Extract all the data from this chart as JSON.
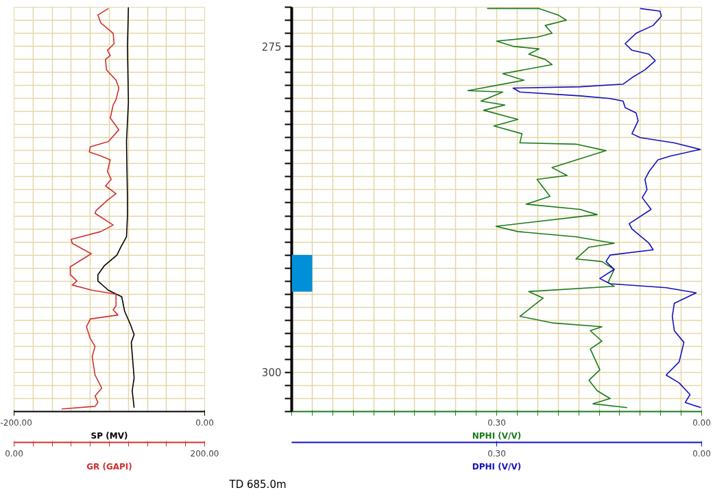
{
  "chart_data": [
    {
      "type": "line",
      "xlim": [
        0,
        200
      ],
      "xticks": [
        {
          "value": 0,
          "label": "0.00"
        },
        {
          "value": 20,
          "label": null
        },
        {
          "value": 40,
          "label": null
        },
        {
          "value": 60,
          "label": null
        },
        {
          "value": 80,
          "label": null
        },
        {
          "value": 100,
          "label": null
        },
        {
          "value": 120,
          "label": null
        },
        {
          "value": 140,
          "label": null
        },
        {
          "value": 160,
          "label": null
        },
        {
          "value": 180,
          "label": null
        },
        {
          "value": 200,
          "label": "200.00"
        }
      ],
      "x2lim": [
        -200,
        0
      ],
      "x2ticks": [
        {
          "value": -200,
          "label": "-200.00"
        },
        {
          "value": 0,
          "label": "0.00"
        }
      ],
      "ylim": [
        303,
        272
      ],
      "yticks": [
        {
          "value": 272,
          "label": null
        },
        {
          "value": 273,
          "label": null
        },
        {
          "value": 274,
          "label": null
        },
        275,
        {
          "value": 276,
          "label": null
        },
        {
          "value": 277,
          "label": null
        },
        {
          "value": 278,
          "label": null
        },
        {
          "value": 279,
          "label": null
        },
        {
          "value": 280,
          "label": null
        },
        {
          "value": 281,
          "label": null
        },
        {
          "value": 282,
          "label": null
        },
        {
          "value": 283,
          "label": null
        },
        {
          "value": 284,
          "label": null
        },
        {
          "value": 285,
          "label": null
        },
        {
          "value": 286,
          "label": null
        },
        {
          "value": 287,
          "label": null
        },
        {
          "value": 288,
          "label": null
        },
        {
          "value": 289,
          "label": null
        },
        {
          "value": 290,
          "label": null
        },
        {
          "value": 291,
          "label": null
        },
        {
          "value": 292,
          "label": null
        },
        {
          "value": 293,
          "label": null
        },
        {
          "value": 294,
          "label": null
        },
        {
          "value": 295,
          "label": null
        },
        {
          "value": 296,
          "label": null
        },
        {
          "value": 297,
          "label": null
        },
        {
          "value": 298,
          "label": null
        },
        {
          "value": 299,
          "label": null
        },
        300,
        {
          "value": 301,
          "label": null
        },
        {
          "value": 302,
          "label": null
        },
        {
          "value": 303,
          "label": null
        }
      ],
      "tick_labels": "x",
      "grid": true,
      "series": [
        {
          "name": "SP (MV)",
          "color": "#000000",
          "axis": "x2",
          "x": [
            -80,
            -81,
            -80,
            -82,
            -81,
            -81,
            -82,
            -88,
            -92,
            -105,
            -112,
            -112,
            -101,
            -87,
            -84,
            -78,
            -74,
            -77,
            -74,
            -76,
            -74
          ],
          "values": [
            272.0,
            275.0,
            279.3,
            282.3,
            286.6,
            288.0,
            289.6,
            290.4,
            291.0,
            291.8,
            292.5,
            293.0,
            293.7,
            294.2,
            295.3,
            296.3,
            297.1,
            297.7,
            300.4,
            301.4,
            302.7
          ]
        },
        {
          "name": "GR (GAPI)",
          "color": "#d03030",
          "x": [
            99,
            88,
            91,
            104,
            105,
            98,
            101,
            96,
            97,
            107,
            110,
            107,
            104,
            101,
            110,
            99,
            80,
            79,
            91,
            101,
            98,
            102,
            96,
            107,
            98,
            86,
            85,
            104,
            91,
            60,
            61,
            81,
            59,
            59,
            66,
            61,
            82,
            107,
            107,
            104,
            109,
            80,
            76,
            80,
            85,
            82,
            85,
            92,
            85,
            88,
            85,
            50
          ],
          "values": [
            272.1,
            272.6,
            273.2,
            274.0,
            274.8,
            275.3,
            275.7,
            276.0,
            276.8,
            277.6,
            278.2,
            279.1,
            279.5,
            280.5,
            281.4,
            282.3,
            282.7,
            283.1,
            283.4,
            283.7,
            284.6,
            285.2,
            285.7,
            286.3,
            286.8,
            287.6,
            287.8,
            288.7,
            289.2,
            289.8,
            290.1,
            290.9,
            291.9,
            292.5,
            293.0,
            293.3,
            293.7,
            294.0,
            294.9,
            295.2,
            295.6,
            295.9,
            296.5,
            297.4,
            298.0,
            298.8,
            300.2,
            301.2,
            301.8,
            302.3,
            302.6,
            302.8
          ]
        }
      ]
    },
    {
      "type": "line",
      "xlim": [
        0.6,
        0
      ],
      "xticks": [
        {
          "value": 0.6,
          "label": null
        },
        {
          "value": 0.57,
          "label": null
        },
        {
          "value": 0.54,
          "label": null
        },
        {
          "value": 0.51,
          "label": null
        },
        {
          "value": 0.48,
          "label": null
        },
        {
          "value": 0.45,
          "label": null
        },
        {
          "value": 0.42,
          "label": null
        },
        {
          "value": 0.39,
          "label": null
        },
        {
          "value": 0.36,
          "label": null
        },
        {
          "value": 0.33,
          "label": null
        },
        {
          "value": 0.3,
          "label": "0.30"
        },
        {
          "value": 0.27,
          "label": null
        },
        {
          "value": 0.24,
          "label": null
        },
        {
          "value": 0.21,
          "label": null
        },
        {
          "value": 0.18,
          "label": null
        },
        {
          "value": 0.15,
          "label": null
        },
        {
          "value": 0.12,
          "label": null
        },
        {
          "value": 0.09,
          "label": null
        },
        {
          "value": 0.06,
          "label": null
        },
        {
          "value": 0.03,
          "label": null
        },
        {
          "value": 0,
          "label": "0.00"
        }
      ],
      "x2lim": [
        0.6,
        0
      ],
      "x2ticks": [
        {
          "value": 0.3,
          "label": "0.30"
        },
        {
          "value": 0,
          "label": "0.00"
        }
      ],
      "ylim": [
        303,
        272
      ],
      "yticks": [
        {
          "value": 272,
          "label": null
        },
        {
          "value": 273,
          "label": null
        },
        {
          "value": 274,
          "label": null
        },
        275,
        {
          "value": 276,
          "label": null
        },
        {
          "value": 277,
          "label": null
        },
        {
          "value": 278,
          "label": null
        },
        {
          "value": 279,
          "label": null
        },
        {
          "value": 280,
          "label": null
        },
        {
          "value": 281,
          "label": null
        },
        {
          "value": 282,
          "label": null
        },
        {
          "value": 283,
          "label": null
        },
        {
          "value": 284,
          "label": null
        },
        {
          "value": 285,
          "label": null
        },
        {
          "value": 286,
          "label": null
        },
        {
          "value": 287,
          "label": null
        },
        {
          "value": 288,
          "label": null
        },
        {
          "value": 289,
          "label": null
        },
        {
          "value": 290,
          "label": null
        },
        {
          "value": 291,
          "label": null
        },
        {
          "value": 292,
          "label": null
        },
        {
          "value": 293,
          "label": null
        },
        {
          "value": 294,
          "label": null
        },
        {
          "value": 295,
          "label": null
        },
        {
          "value": 296,
          "label": null
        },
        {
          "value": 297,
          "label": null
        },
        {
          "value": 298,
          "label": null
        },
        {
          "value": 299,
          "label": null
        },
        300,
        {
          "value": 301,
          "label": null
        },
        {
          "value": 302,
          "label": null
        },
        {
          "value": 303,
          "label": null
        }
      ],
      "grid": true,
      "bands": [
        {
          "axis": "y",
          "from": 291.0,
          "to": 293.8,
          "color": "#0090d8"
        }
      ],
      "annotations": [
        "TD  685.0m"
      ],
      "series": [
        {
          "name": "NPHI (V/V)",
          "color": "#1a7a1a",
          "x": [
            0.314,
            0.238,
            0.21,
            0.198,
            0.229,
            0.219,
            0.241,
            0.3,
            0.276,
            0.238,
            0.253,
            0.229,
            0.219,
            0.291,
            0.26,
            0.342,
            0.291,
            0.323,
            0.288,
            0.319,
            0.269,
            0.304,
            0.263,
            0.266,
            0.184,
            0.14,
            0.219,
            0.197,
            0.241,
            0.222,
            0.257,
            0.178,
            0.153,
            0.301,
            0.269,
            0.184,
            0.128,
            0.165,
            0.184,
            0.146,
            0.128,
            0.137,
            0.128,
            0.253,
            0.232,
            0.266,
            0.219,
            0.146,
            0.163,
            0.146,
            0.163,
            0.149,
            0.165,
            0.153,
            0.134,
            0.159,
            0.109
          ],
          "values": [
            272.1,
            272.1,
            272.6,
            273.0,
            273.4,
            274.0,
            274.3,
            274.6,
            275.0,
            275.2,
            275.6,
            276.0,
            276.4,
            277.1,
            277.6,
            278.4,
            278.5,
            279.2,
            279.5,
            279.9,
            280.6,
            281.1,
            281.7,
            282.4,
            282.5,
            283.0,
            284.3,
            284.9,
            285.2,
            286.5,
            287.1,
            287.5,
            287.9,
            288.8,
            289.2,
            289.6,
            290.1,
            290.4,
            291.3,
            291.5,
            292.1,
            293.1,
            293.4,
            293.8,
            294.3,
            295.7,
            296.2,
            296.5,
            296.8,
            297.6,
            298.2,
            299.8,
            300.6,
            301.4,
            302.0,
            302.4,
            302.7
          ]
        },
        {
          "name": "DPHI (V/V)",
          "color": "#1010c0",
          "axis": "x2",
          "x": [
            0.09,
            0.061,
            0.059,
            0.071,
            0.096,
            0.112,
            0.102,
            0.077,
            0.068,
            0.083,
            0.102,
            0.115,
            0.178,
            0.276,
            0.266,
            0.178,
            0.134,
            0.115,
            0.112,
            0.096,
            0.093,
            0.102,
            0.09,
            0.04,
            0.002,
            0.045,
            0.064,
            0.077,
            0.083,
            0.08,
            0.087,
            0.074,
            0.106,
            0.102,
            0.077,
            0.071,
            0.134,
            0.14,
            0.128,
            0.149,
            0.134,
            0.052,
            0.008,
            0.04,
            0.043,
            0.04,
            0.026,
            0.033,
            0.052,
            0.033,
            0.017,
            0.024,
            0.001
          ],
          "values": [
            272.1,
            272.3,
            272.7,
            273.4,
            274.0,
            274.8,
            275.3,
            275.6,
            276.1,
            276.8,
            277.4,
            277.9,
            278.1,
            278.2,
            278.5,
            278.8,
            279.0,
            279.2,
            279.7,
            280.1,
            280.7,
            281.7,
            282.0,
            282.4,
            282.9,
            283.4,
            283.7,
            284.6,
            285.2,
            286.0,
            286.6,
            287.5,
            288.6,
            289.0,
            290.1,
            290.6,
            291.0,
            291.5,
            292.1,
            292.8,
            293.2,
            293.5,
            293.9,
            294.7,
            295.7,
            296.8,
            297.7,
            299.2,
            300.2,
            300.8,
            301.7,
            302.3,
            302.7
          ]
        }
      ]
    }
  ]
}
